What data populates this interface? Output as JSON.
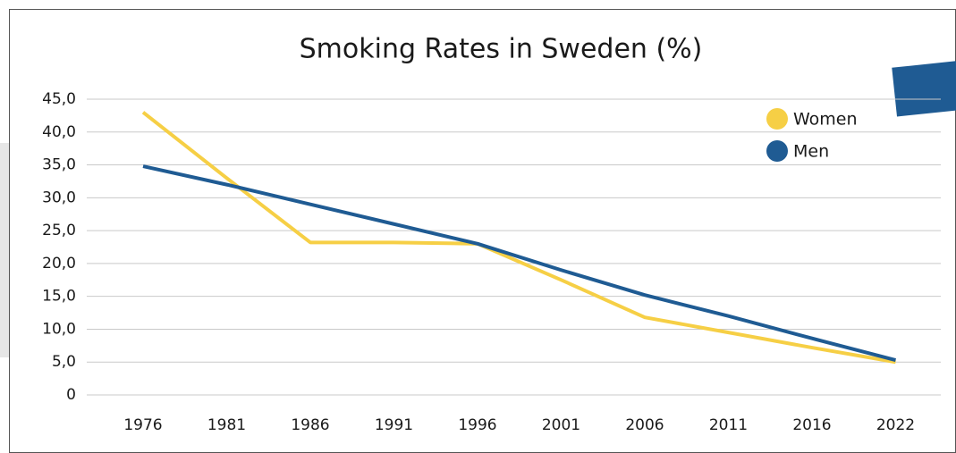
{
  "chart_data": {
    "type": "line",
    "title": "Smoking Rates in Sweden (%)",
    "categories": [
      "1976",
      "1981",
      "1986",
      "1991",
      "1996",
      "2001",
      "2006",
      "2011",
      "2016",
      "2022"
    ],
    "series": [
      {
        "name": "Women",
        "color": "#f6cf45",
        "values": [
          43,
          33,
          23.2,
          23.2,
          23,
          17.5,
          11.8,
          9.5,
          7.2,
          5
        ]
      },
      {
        "name": "Men",
        "color": "#1f5b93",
        "values": [
          34.8,
          32,
          29,
          26,
          23,
          19,
          15.2,
          12,
          8.6,
          5.3
        ]
      }
    ],
    "ylim": [
      0,
      45
    ],
    "yticks": [
      0,
      {
        "value": 5,
        "label": "5,0"
      },
      {
        "value": 10,
        "label": "10,0"
      },
      {
        "value": 15,
        "label": "15,0"
      },
      {
        "value": 20,
        "label": "20,0"
      },
      {
        "value": 25,
        "label": "25,0"
      },
      {
        "value": 30,
        "label": "30,0"
      },
      {
        "value": 35,
        "label": "35,0"
      },
      {
        "value": 40,
        "label": "40,0"
      },
      {
        "value": 45,
        "label": "45,0"
      }
    ],
    "grid": true,
    "legend": "upper right"
  }
}
